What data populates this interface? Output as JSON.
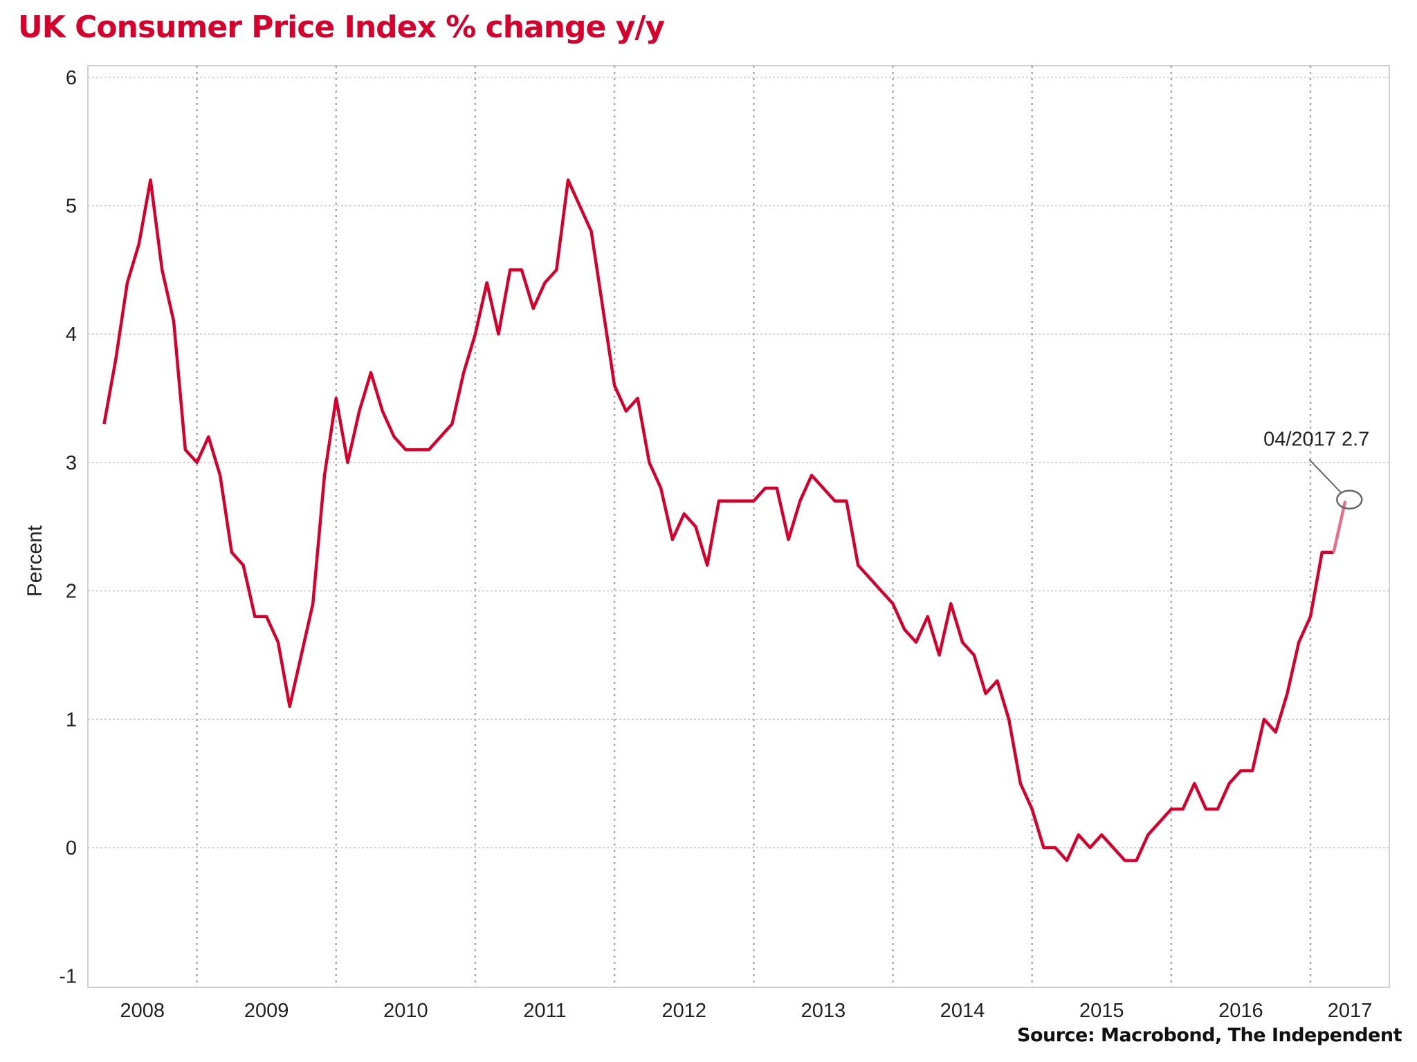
{
  "chart_data": {
    "type": "line",
    "title": "UK Consumer Price Index % change y/y",
    "ylabel": "Percent",
    "xlabel": "",
    "source": "Source: Macrobond, The Independent",
    "ylim": [
      -1,
      6
    ],
    "yticks": [
      -1,
      0,
      1,
      2,
      3,
      4,
      5,
      6
    ],
    "xticks": [
      "2008",
      "2009",
      "2010",
      "2011",
      "2012",
      "2013",
      "2014",
      "2015",
      "2016",
      "2017"
    ],
    "xrange": [
      "2008-04",
      "2017-08"
    ],
    "grid": true,
    "colors": {
      "line": "#d7002c",
      "last_segment": "#e8708a",
      "title": "#d7002c",
      "grid": "#c8c8c8"
    },
    "annotation": {
      "label": "04/2017 2.7",
      "date": "2017-04",
      "value": 2.7
    },
    "series": [
      {
        "start": "2008-05",
        "frequency": "monthly",
        "values": [
          3.3,
          3.8,
          4.4,
          4.7,
          5.2,
          4.5,
          4.1,
          3.1,
          3.0,
          3.2,
          2.9,
          2.3,
          2.2,
          1.8,
          1.8,
          1.6,
          1.1,
          1.5,
          1.9,
          2.9,
          3.5,
          3.0,
          3.4,
          3.7,
          3.4,
          3.2,
          3.1,
          3.1,
          3.1,
          3.2,
          3.3,
          3.7,
          4.0,
          4.4,
          4.0,
          4.5,
          4.5,
          4.2,
          4.4,
          4.5,
          5.2,
          5.0,
          4.8,
          4.2,
          3.6,
          3.4,
          3.5,
          3.0,
          2.8,
          2.4,
          2.6,
          2.5,
          2.2,
          2.7,
          2.7,
          2.7,
          2.7,
          2.8,
          2.8,
          2.4,
          2.7,
          2.9,
          2.8,
          2.7,
          2.7,
          2.2,
          2.1,
          2.0,
          1.9,
          1.7,
          1.6,
          1.8,
          1.5,
          1.9,
          1.6,
          1.5,
          1.2,
          1.3,
          1.0,
          0.5,
          0.3,
          0.0,
          0.0,
          -0.1,
          0.1,
          0.0,
          0.1,
          0.0,
          -0.1,
          -0.1,
          0.1,
          0.2,
          0.3,
          0.3,
          0.5,
          0.3,
          0.3,
          0.5,
          0.6,
          0.6,
          1.0,
          0.9,
          1.2,
          1.6,
          1.8,
          2.3,
          2.3,
          2.7
        ]
      }
    ]
  }
}
